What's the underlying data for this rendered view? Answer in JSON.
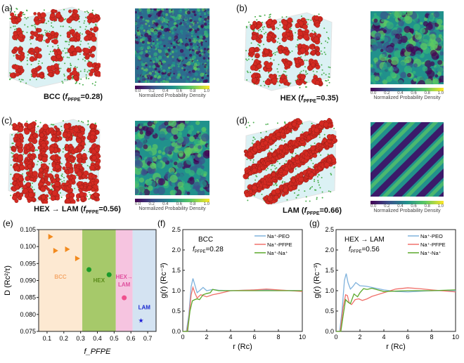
{
  "panels": {
    "a": {
      "label": "(a)",
      "caption_pre": "BCC (",
      "caption_sub": "PFPE",
      "caption_post": "=0.28)"
    },
    "b": {
      "label": "(b)",
      "caption_pre": "HEX (",
      "caption_sub": "PFPE",
      "caption_post": "=0.35)"
    },
    "c": {
      "label": "(c)",
      "caption_pre": "HEX → LAM (",
      "caption_sub": "PFPE",
      "caption_post": "=0.56)"
    },
    "d": {
      "label": "(d)",
      "caption_pre": "LAM (",
      "caption_sub": "PFPE",
      "caption_post": "=0.66)"
    },
    "e": {
      "label": "(e)"
    },
    "f": {
      "label": "(f)"
    },
    "g": {
      "label": "(g)"
    }
  },
  "f_symbol": "f",
  "colorbar": {
    "ticks": [
      "0.0",
      "0.2",
      "0.4",
      "0.6",
      "0.8",
      "1.0"
    ],
    "label": "Normalized Probability Density"
  },
  "colors": {
    "bead_red": "#d42a22",
    "bead_green": "#4caf50",
    "box": "#bfe6ec"
  },
  "chart_data": [
    {
      "type": "scatter",
      "panel": "e",
      "ylabel": "D (Rc²/τ)",
      "xlabel": "f_PFPE",
      "xlim": [
        0.05,
        0.75
      ],
      "ylim": [
        0.075,
        0.105
      ],
      "xticks": [
        "0.1",
        "0.2",
        "0.3",
        "0.4",
        "0.5",
        "0.6",
        "0.7"
      ],
      "yticks": [
        "0.075",
        "0.080",
        "0.085",
        "0.090",
        "0.095",
        "0.100",
        "0.105"
      ],
      "regions": [
        {
          "name": "BCC",
          "from": 0.05,
          "to": 0.31,
          "color": "#fde9d2",
          "text": "#f5a86a"
        },
        {
          "name": "HEX",
          "from": 0.31,
          "to": 0.51,
          "color": "#a6c96a",
          "text": "#5a8a1a"
        },
        {
          "name": "HEX→ LAM",
          "from": 0.51,
          "to": 0.61,
          "color": "#f6c4e0",
          "text": "#e0509e"
        },
        {
          "name": "LAM",
          "from": 0.61,
          "to": 0.75,
          "color": "#d4e3f2",
          "text": "#1a2ad0"
        }
      ],
      "series": [
        {
          "name": "BCC",
          "marker": "triangle",
          "color": "#f28a1e",
          "points": [
            [
              0.12,
              0.1029
            ],
            [
              0.15,
              0.0988
            ],
            [
              0.22,
              0.0992
            ],
            [
              0.28,
              0.0965
            ]
          ]
        },
        {
          "name": "HEX",
          "marker": "circle",
          "color": "#1a9a2a",
          "points": [
            [
              0.35,
              0.0932
            ],
            [
              0.47,
              0.0917
            ]
          ]
        },
        {
          "name": "HEX→LAM",
          "marker": "circle",
          "color": "#f0508e",
          "points": [
            [
              0.56,
              0.0849
            ]
          ]
        },
        {
          "name": "LAM",
          "marker": "star",
          "color": "#1a1ad8",
          "points": [
            [
              0.66,
              0.0782
            ]
          ]
        }
      ]
    },
    {
      "type": "line",
      "panel": "f",
      "title": "BCC",
      "subtitle": "=0.28",
      "xlabel": "r (Rc)",
      "ylabel": "g(r) (Rc⁻³)",
      "xlim": [
        0,
        10
      ],
      "ylim": [
        0,
        2.5
      ],
      "xticks": [
        "0",
        "2",
        "4",
        "6",
        "8",
        "10"
      ],
      "yticks": [
        "0.0",
        "0.5",
        "1.0",
        "1.5",
        "2.0",
        "2.5"
      ],
      "series": [
        {
          "name": "Na⁺-PEO",
          "color": "#7fb2dc",
          "points": [
            [
              0,
              0
            ],
            [
              0.3,
              0
            ],
            [
              0.5,
              0.4
            ],
            [
              0.7,
              1.1
            ],
            [
              0.85,
              1.3
            ],
            [
              1.0,
              1.15
            ],
            [
              1.2,
              0.95
            ],
            [
              1.4,
              1.0
            ],
            [
              1.7,
              1.08
            ],
            [
              2.0,
              1.0
            ],
            [
              2.5,
              1.03
            ],
            [
              3,
              1.01
            ],
            [
              4,
              1.0
            ],
            [
              6,
              1.02
            ],
            [
              8,
              1.01
            ],
            [
              10,
              1.0
            ]
          ]
        },
        {
          "name": "Na⁺-PFPE",
          "color": "#f0706a",
          "points": [
            [
              0,
              0
            ],
            [
              0.35,
              0
            ],
            [
              0.5,
              0.3
            ],
            [
              0.7,
              0.9
            ],
            [
              0.85,
              1.08
            ],
            [
              1.0,
              0.95
            ],
            [
              1.2,
              0.82
            ],
            [
              1.5,
              0.9
            ],
            [
              2.0,
              0.85
            ],
            [
              2.5,
              0.9
            ],
            [
              3,
              0.93
            ],
            [
              4,
              1.0
            ],
            [
              6,
              1.02
            ],
            [
              7,
              1.04
            ],
            [
              8,
              1.02
            ],
            [
              10,
              0.98
            ]
          ]
        },
        {
          "name": "Na⁺-Na⁺",
          "color": "#5aa82a",
          "points": [
            [
              0,
              0
            ],
            [
              0.4,
              0
            ],
            [
              0.6,
              0.5
            ],
            [
              0.8,
              0.75
            ],
            [
              1.0,
              0.78
            ],
            [
              1.2,
              0.8
            ],
            [
              1.4,
              0.78
            ],
            [
              1.7,
              0.9
            ],
            [
              2.0,
              0.93
            ],
            [
              2.3,
              0.95
            ],
            [
              2.5,
              1.03
            ],
            [
              3,
              1.0
            ],
            [
              4,
              1.0
            ],
            [
              6,
              1.0
            ],
            [
              10,
              1.0
            ]
          ]
        }
      ]
    },
    {
      "type": "line",
      "panel": "g",
      "title": "HEX → LAM",
      "subtitle": "=0.56",
      "xlabel": "r (Rc)",
      "ylabel": "g(r) (Rc⁻³)",
      "xlim": [
        0,
        10
      ],
      "ylim": [
        0,
        2.5
      ],
      "xticks": [
        "0",
        "2",
        "4",
        "6",
        "8",
        "10"
      ],
      "yticks": [
        "0.0",
        "0.5",
        "1.0",
        "1.5",
        "2.0",
        "2.5"
      ],
      "series": [
        {
          "name": "Na⁺-PEO",
          "color": "#7fb2dc",
          "points": [
            [
              0,
              0
            ],
            [
              0.3,
              0
            ],
            [
              0.5,
              0.5
            ],
            [
              0.7,
              1.25
            ],
            [
              0.85,
              1.42
            ],
            [
              1.0,
              1.2
            ],
            [
              1.2,
              1.04
            ],
            [
              1.4,
              1.1
            ],
            [
              1.65,
              1.2
            ],
            [
              2.0,
              1.12
            ],
            [
              2.5,
              1.11
            ],
            [
              3,
              1.08
            ],
            [
              4,
              1.02
            ],
            [
              5,
              0.98
            ],
            [
              6,
              0.97
            ],
            [
              8,
              1.0
            ],
            [
              10,
              1.0
            ]
          ]
        },
        {
          "name": "Na⁺-PFPE",
          "color": "#f0706a",
          "points": [
            [
              0,
              0
            ],
            [
              0.35,
              0
            ],
            [
              0.6,
              0.6
            ],
            [
              0.8,
              0.9
            ],
            [
              0.95,
              0.88
            ],
            [
              1.1,
              0.7
            ],
            [
              1.3,
              0.66
            ],
            [
              1.6,
              0.78
            ],
            [
              1.9,
              0.8
            ],
            [
              2.2,
              0.76
            ],
            [
              2.6,
              0.8
            ],
            [
              3,
              0.86
            ],
            [
              4,
              0.95
            ],
            [
              5,
              1.04
            ],
            [
              6,
              1.07
            ],
            [
              7,
              1.05
            ],
            [
              8,
              1.02
            ],
            [
              10,
              0.97
            ]
          ]
        },
        {
          "name": "Na⁺-Na⁺",
          "color": "#5aa82a",
          "points": [
            [
              0,
              0
            ],
            [
              0.4,
              0
            ],
            [
              0.6,
              0.4
            ],
            [
              0.8,
              0.78
            ],
            [
              1.0,
              0.72
            ],
            [
              1.2,
              0.68
            ],
            [
              1.5,
              0.92
            ],
            [
              1.8,
              0.85
            ],
            [
              2.0,
              0.95
            ],
            [
              2.3,
              1.05
            ],
            [
              2.6,
              1.03
            ],
            [
              3,
              1.06
            ],
            [
              3.5,
              1.02
            ],
            [
              4,
              0.98
            ],
            [
              6,
              1.0
            ],
            [
              8,
              1.0
            ],
            [
              10,
              1.02
            ]
          ]
        }
      ]
    }
  ]
}
